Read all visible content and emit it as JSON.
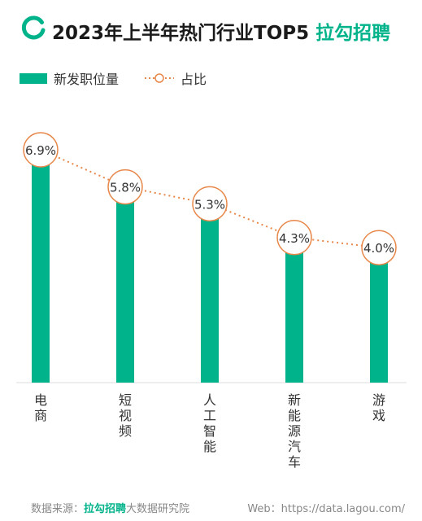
{
  "header": {
    "title": "2023年上半年热门行业TOP5",
    "brand": "拉勾招聘"
  },
  "legend": {
    "bar_label": "新发职位量",
    "line_label": "占比"
  },
  "colors": {
    "bar": "#00b38a",
    "line": "#e8874a",
    "brand": "#00b38a"
  },
  "chart_data": {
    "type": "bar",
    "title": "2023年上半年热门行业TOP5",
    "categories": [
      "电商",
      "短视频",
      "人工智能",
      "新能源汽车",
      "游戏"
    ],
    "series": [
      {
        "name": "新发职位量",
        "type": "bar",
        "values": [
          6.9,
          5.8,
          5.3,
          4.3,
          4.0
        ]
      },
      {
        "name": "占比",
        "type": "line",
        "values": [
          6.9,
          5.8,
          5.3,
          4.3,
          4.0
        ],
        "labels": [
          "6.9%",
          "5.8%",
          "5.3%",
          "4.3%",
          "4.0%"
        ]
      }
    ],
    "ylim": [
      0,
      7.6
    ],
    "grid": false,
    "legend_position": "top-left"
  },
  "footer": {
    "source_label": "数据来源：",
    "source_brand": "拉勾招聘",
    "source_suffix": "大数据研究院",
    "web": "Web：https://data.lagou.com/"
  }
}
